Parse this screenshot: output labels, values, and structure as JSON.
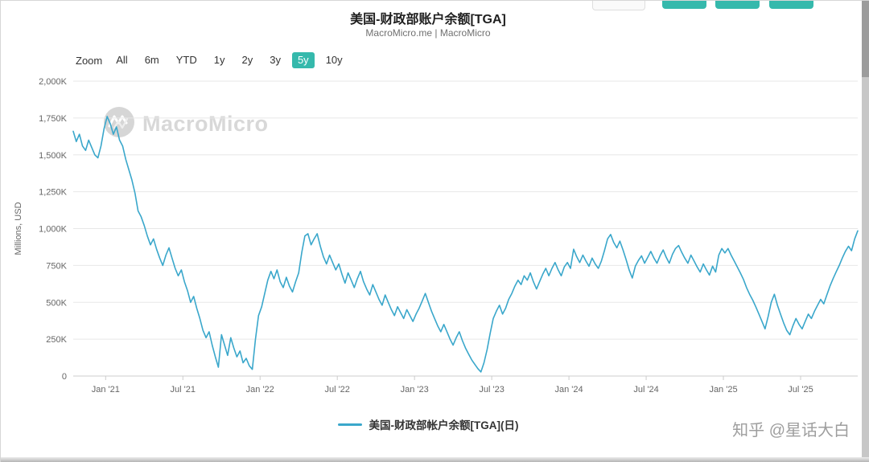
{
  "colors": {
    "accent": "#35b9ac",
    "series": "#3aa7cb",
    "grid": "#e7e7e7",
    "axis": "#cccccc",
    "tick_text": "#666666"
  },
  "header": {
    "title": "美国-财政部账户余额[TGA]",
    "subtitle": "MacroMicro.me | MacroMicro"
  },
  "toolbar": {
    "zoom_label": "Zoom",
    "buttons": [
      "All",
      "6m",
      "YTD",
      "1y",
      "2y",
      "3y",
      "5y",
      "10y"
    ],
    "selected": "5y"
  },
  "watermark": {
    "brand": "MacroMicro"
  },
  "legend": {
    "label": "美国-财政部帐户余额[TGA](日)"
  },
  "footer": {
    "watermark": "知乎 @星话大白"
  },
  "chart_data": {
    "type": "line",
    "title": "美国-财政部账户余额[TGA]",
    "xlabel": "",
    "ylabel": "Millions, USD",
    "ylim": [
      0,
      2000
    ],
    "xlim": [
      2020.79,
      2025.87
    ],
    "grid": true,
    "legend_position": "bottom",
    "yticks": [
      {
        "v": 0,
        "label": "0"
      },
      {
        "v": 250,
        "label": "250K"
      },
      {
        "v": 500,
        "label": "500K"
      },
      {
        "v": 750,
        "label": "750K"
      },
      {
        "v": 1000,
        "label": "1,000K"
      },
      {
        "v": 1250,
        "label": "1,250K"
      },
      {
        "v": 1500,
        "label": "1,500K"
      },
      {
        "v": 1750,
        "label": "1,750K"
      },
      {
        "v": 2000,
        "label": "2,000K"
      }
    ],
    "xticks": [
      {
        "v": 2021.0,
        "label": "Jan '21"
      },
      {
        "v": 2021.5,
        "label": "Jul '21"
      },
      {
        "v": 2022.0,
        "label": "Jan '22"
      },
      {
        "v": 2022.5,
        "label": "Jul '22"
      },
      {
        "v": 2023.0,
        "label": "Jan '23"
      },
      {
        "v": 2023.5,
        "label": "Jul '23"
      },
      {
        "v": 2024.0,
        "label": "Jan '24"
      },
      {
        "v": 2024.5,
        "label": "Jul '24"
      },
      {
        "v": 2025.0,
        "label": "Jan '25"
      },
      {
        "v": 2025.5,
        "label": "Jul '25"
      }
    ],
    "series": [
      {
        "name": "美国-财政部帐户余额[TGA](日)",
        "color": "#3aa7cb",
        "unit": "Millions, USD (K = thousands)",
        "points": [
          [
            2020.79,
            1660
          ],
          [
            2020.81,
            1590
          ],
          [
            2020.83,
            1640
          ],
          [
            2020.85,
            1560
          ],
          [
            2020.87,
            1530
          ],
          [
            2020.89,
            1600
          ],
          [
            2020.91,
            1550
          ],
          [
            2020.93,
            1500
          ],
          [
            2020.95,
            1480
          ],
          [
            2020.97,
            1560
          ],
          [
            2020.99,
            1680
          ],
          [
            2021.01,
            1760
          ],
          [
            2021.03,
            1710
          ],
          [
            2021.05,
            1640
          ],
          [
            2021.07,
            1690
          ],
          [
            2021.09,
            1600
          ],
          [
            2021.11,
            1560
          ],
          [
            2021.13,
            1470
          ],
          [
            2021.15,
            1400
          ],
          [
            2021.17,
            1330
          ],
          [
            2021.19,
            1240
          ],
          [
            2021.21,
            1120
          ],
          [
            2021.23,
            1080
          ],
          [
            2021.25,
            1020
          ],
          [
            2021.27,
            950
          ],
          [
            2021.29,
            890
          ],
          [
            2021.31,
            930
          ],
          [
            2021.33,
            860
          ],
          [
            2021.35,
            800
          ],
          [
            2021.37,
            750
          ],
          [
            2021.39,
            820
          ],
          [
            2021.41,
            870
          ],
          [
            2021.43,
            800
          ],
          [
            2021.45,
            730
          ],
          [
            2021.47,
            680
          ],
          [
            2021.49,
            720
          ],
          [
            2021.51,
            640
          ],
          [
            2021.53,
            580
          ],
          [
            2021.55,
            500
          ],
          [
            2021.57,
            540
          ],
          [
            2021.59,
            460
          ],
          [
            2021.61,
            390
          ],
          [
            2021.63,
            310
          ],
          [
            2021.65,
            260
          ],
          [
            2021.67,
            300
          ],
          [
            2021.69,
            210
          ],
          [
            2021.71,
            130
          ],
          [
            2021.73,
            60
          ],
          [
            2021.75,
            280
          ],
          [
            2021.77,
            210
          ],
          [
            2021.79,
            140
          ],
          [
            2021.81,
            260
          ],
          [
            2021.83,
            190
          ],
          [
            2021.85,
            130
          ],
          [
            2021.87,
            170
          ],
          [
            2021.89,
            90
          ],
          [
            2021.91,
            120
          ],
          [
            2021.93,
            70
          ],
          [
            2021.95,
            45
          ],
          [
            2021.97,
            250
          ],
          [
            2021.99,
            410
          ],
          [
            2022.01,
            470
          ],
          [
            2022.03,
            560
          ],
          [
            2022.05,
            650
          ],
          [
            2022.07,
            710
          ],
          [
            2022.09,
            660
          ],
          [
            2022.11,
            720
          ],
          [
            2022.13,
            640
          ],
          [
            2022.15,
            600
          ],
          [
            2022.17,
            670
          ],
          [
            2022.19,
            610
          ],
          [
            2022.21,
            570
          ],
          [
            2022.23,
            640
          ],
          [
            2022.25,
            700
          ],
          [
            2022.27,
            840
          ],
          [
            2022.29,
            950
          ],
          [
            2022.31,
            965
          ],
          [
            2022.33,
            890
          ],
          [
            2022.35,
            930
          ],
          [
            2022.37,
            965
          ],
          [
            2022.39,
            880
          ],
          [
            2022.41,
            810
          ],
          [
            2022.43,
            760
          ],
          [
            2022.45,
            820
          ],
          [
            2022.47,
            770
          ],
          [
            2022.49,
            720
          ],
          [
            2022.51,
            760
          ],
          [
            2022.53,
            690
          ],
          [
            2022.55,
            630
          ],
          [
            2022.57,
            700
          ],
          [
            2022.59,
            650
          ],
          [
            2022.61,
            600
          ],
          [
            2022.63,
            660
          ],
          [
            2022.65,
            710
          ],
          [
            2022.67,
            640
          ],
          [
            2022.69,
            590
          ],
          [
            2022.71,
            550
          ],
          [
            2022.73,
            620
          ],
          [
            2022.75,
            570
          ],
          [
            2022.77,
            520
          ],
          [
            2022.79,
            480
          ],
          [
            2022.81,
            550
          ],
          [
            2022.83,
            500
          ],
          [
            2022.85,
            450
          ],
          [
            2022.87,
            410
          ],
          [
            2022.89,
            470
          ],
          [
            2022.91,
            430
          ],
          [
            2022.93,
            390
          ],
          [
            2022.95,
            450
          ],
          [
            2022.97,
            410
          ],
          [
            2022.99,
            370
          ],
          [
            2023.01,
            420
          ],
          [
            2023.03,
            460
          ],
          [
            2023.05,
            510
          ],
          [
            2023.07,
            560
          ],
          [
            2023.09,
            500
          ],
          [
            2023.11,
            440
          ],
          [
            2023.13,
            390
          ],
          [
            2023.15,
            340
          ],
          [
            2023.17,
            300
          ],
          [
            2023.19,
            350
          ],
          [
            2023.21,
            300
          ],
          [
            2023.23,
            250
          ],
          [
            2023.25,
            210
          ],
          [
            2023.27,
            260
          ],
          [
            2023.29,
            300
          ],
          [
            2023.31,
            240
          ],
          [
            2023.33,
            190
          ],
          [
            2023.35,
            150
          ],
          [
            2023.37,
            110
          ],
          [
            2023.39,
            80
          ],
          [
            2023.41,
            50
          ],
          [
            2023.43,
            28
          ],
          [
            2023.45,
            90
          ],
          [
            2023.47,
            180
          ],
          [
            2023.49,
            290
          ],
          [
            2023.51,
            390
          ],
          [
            2023.53,
            440
          ],
          [
            2023.55,
            480
          ],
          [
            2023.57,
            420
          ],
          [
            2023.59,
            460
          ],
          [
            2023.61,
            520
          ],
          [
            2023.63,
            560
          ],
          [
            2023.65,
            610
          ],
          [
            2023.67,
            650
          ],
          [
            2023.69,
            620
          ],
          [
            2023.71,
            680
          ],
          [
            2023.73,
            650
          ],
          [
            2023.75,
            700
          ],
          [
            2023.77,
            640
          ],
          [
            2023.79,
            590
          ],
          [
            2023.81,
            640
          ],
          [
            2023.83,
            690
          ],
          [
            2023.85,
            730
          ],
          [
            2023.87,
            680
          ],
          [
            2023.89,
            730
          ],
          [
            2023.91,
            770
          ],
          [
            2023.93,
            720
          ],
          [
            2023.95,
            680
          ],
          [
            2023.97,
            740
          ],
          [
            2023.99,
            770
          ],
          [
            2024.01,
            730
          ],
          [
            2024.03,
            860
          ],
          [
            2024.05,
            810
          ],
          [
            2024.07,
            770
          ],
          [
            2024.09,
            820
          ],
          [
            2024.11,
            780
          ],
          [
            2024.13,
            745
          ],
          [
            2024.15,
            800
          ],
          [
            2024.17,
            760
          ],
          [
            2024.19,
            730
          ],
          [
            2024.21,
            780
          ],
          [
            2024.23,
            850
          ],
          [
            2024.25,
            930
          ],
          [
            2024.27,
            960
          ],
          [
            2024.29,
            905
          ],
          [
            2024.31,
            870
          ],
          [
            2024.33,
            915
          ],
          [
            2024.35,
            855
          ],
          [
            2024.37,
            790
          ],
          [
            2024.39,
            720
          ],
          [
            2024.41,
            665
          ],
          [
            2024.43,
            745
          ],
          [
            2024.45,
            785
          ],
          [
            2024.47,
            815
          ],
          [
            2024.49,
            765
          ],
          [
            2024.51,
            805
          ],
          [
            2024.53,
            845
          ],
          [
            2024.55,
            800
          ],
          [
            2024.57,
            765
          ],
          [
            2024.59,
            815
          ],
          [
            2024.61,
            855
          ],
          [
            2024.63,
            805
          ],
          [
            2024.65,
            765
          ],
          [
            2024.67,
            825
          ],
          [
            2024.69,
            865
          ],
          [
            2024.71,
            885
          ],
          [
            2024.73,
            840
          ],
          [
            2024.75,
            800
          ],
          [
            2024.77,
            765
          ],
          [
            2024.79,
            820
          ],
          [
            2024.81,
            780
          ],
          [
            2024.83,
            740
          ],
          [
            2024.85,
            705
          ],
          [
            2024.87,
            760
          ],
          [
            2024.89,
            720
          ],
          [
            2024.91,
            685
          ],
          [
            2024.93,
            745
          ],
          [
            2024.95,
            705
          ],
          [
            2024.97,
            820
          ],
          [
            2024.99,
            865
          ],
          [
            2025.01,
            835
          ],
          [
            2025.03,
            865
          ],
          [
            2025.05,
            820
          ],
          [
            2025.07,
            780
          ],
          [
            2025.09,
            740
          ],
          [
            2025.11,
            700
          ],
          [
            2025.13,
            655
          ],
          [
            2025.15,
            600
          ],
          [
            2025.17,
            555
          ],
          [
            2025.19,
            515
          ],
          [
            2025.21,
            470
          ],
          [
            2025.23,
            420
          ],
          [
            2025.25,
            370
          ],
          [
            2025.27,
            320
          ],
          [
            2025.29,
            405
          ],
          [
            2025.31,
            500
          ],
          [
            2025.33,
            555
          ],
          [
            2025.35,
            480
          ],
          [
            2025.37,
            420
          ],
          [
            2025.39,
            360
          ],
          [
            2025.41,
            310
          ],
          [
            2025.43,
            280
          ],
          [
            2025.45,
            340
          ],
          [
            2025.47,
            390
          ],
          [
            2025.49,
            350
          ],
          [
            2025.51,
            320
          ],
          [
            2025.53,
            370
          ],
          [
            2025.55,
            420
          ],
          [
            2025.57,
            390
          ],
          [
            2025.59,
            440
          ],
          [
            2025.61,
            480
          ],
          [
            2025.63,
            520
          ],
          [
            2025.65,
            490
          ],
          [
            2025.67,
            550
          ],
          [
            2025.69,
            610
          ],
          [
            2025.71,
            660
          ],
          [
            2025.73,
            705
          ],
          [
            2025.75,
            750
          ],
          [
            2025.77,
            800
          ],
          [
            2025.79,
            845
          ],
          [
            2025.81,
            880
          ],
          [
            2025.83,
            850
          ],
          [
            2025.85,
            930
          ],
          [
            2025.87,
            985
          ]
        ]
      }
    ]
  }
}
